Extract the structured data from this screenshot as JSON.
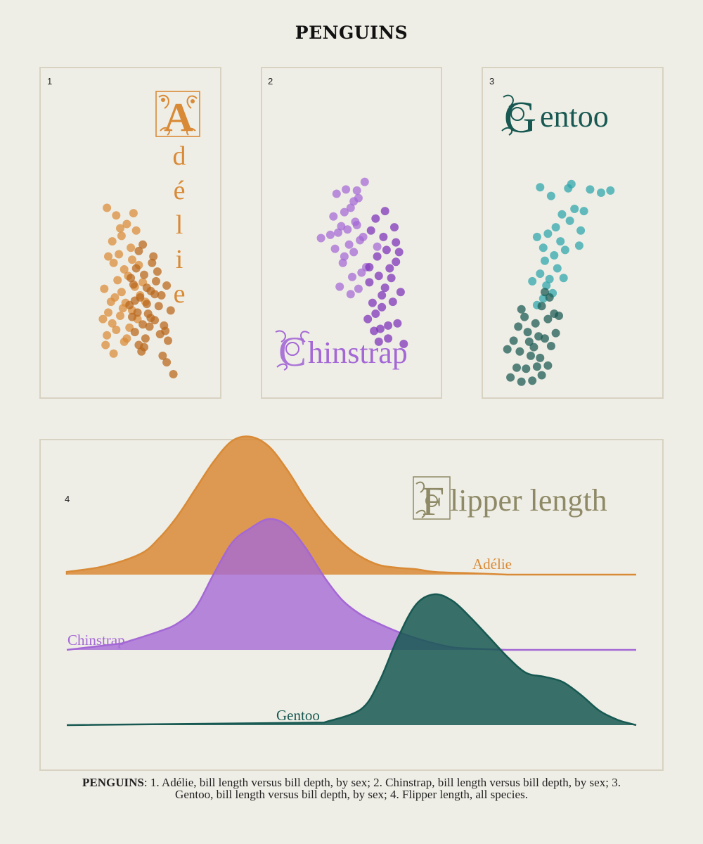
{
  "title": "PENGUINS",
  "panels": [
    {
      "num": "1",
      "label": "Adélie"
    },
    {
      "num": "2",
      "label": "Chinstrap"
    },
    {
      "num": "3",
      "label": "Gentoo"
    },
    {
      "num": "4",
      "label": "Flipper length"
    }
  ],
  "caption": {
    "bold": "PENGUINS",
    "text": ": 1. Adélie, bill length versus bill depth, by sex; 2. Chinstrap, bill length versus bill depth, by sex; 3. Gentoo, bill length versus bill depth, by sex; 4. Flipper length, all species."
  },
  "colors": {
    "adelie_female": "#d98a36",
    "adelie_male": "#b8661a",
    "chinstrap_female": "#a468d6",
    "chinstrap_male": "#7c30b8",
    "gentoo_female": "#2aa5ab",
    "gentoo_male": "#175952",
    "flipper_label": "#8e8a67",
    "panel_border": "#d8d2c2",
    "background": "#efeee6"
  },
  "chart_data": [
    {
      "type": "scatter",
      "title": "Adélie",
      "xlim": [
        13,
        22
      ],
      "ylim": [
        32,
        60
      ],
      "series": [
        {
          "color_key": "adelie_female",
          "points": [
            [
              16.5,
              37.1
            ],
            [
              17.2,
              37.6
            ],
            [
              16.9,
              38.2
            ],
            [
              17.8,
              36.5
            ],
            [
              18.2,
              37.8
            ],
            [
              17.5,
              38.9
            ],
            [
              16.6,
              39.2
            ],
            [
              17.9,
              40.1
            ],
            [
              18.4,
              39.4
            ],
            [
              17.1,
              40.6
            ],
            [
              17.6,
              41.1
            ],
            [
              18.8,
              38.6
            ],
            [
              16.4,
              36.2
            ],
            [
              18.6,
              41.6
            ],
            [
              17.3,
              42.2
            ],
            [
              17.7,
              39.6
            ],
            [
              16.8,
              40.2
            ],
            [
              18.1,
              42.6
            ],
            [
              17.0,
              43.8
            ],
            [
              17.4,
              44.6
            ],
            [
              18.3,
              45.2
            ],
            [
              16.9,
              45.8
            ],
            [
              17.6,
              46.3
            ],
            [
              18.7,
              46.8
            ],
            [
              18.0,
              47.4
            ],
            [
              17.2,
              48.2
            ],
            [
              16.5,
              48.9
            ],
            [
              18.4,
              44.1
            ],
            [
              17.8,
              43.2
            ],
            [
              19.0,
              40.8
            ],
            [
              17.0,
              35.4
            ],
            [
              16.3,
              41.4
            ],
            [
              18.9,
              43.6
            ],
            [
              19.2,
              42.0
            ],
            [
              17.5,
              47.0
            ],
            [
              18.5,
              48.4
            ],
            [
              16.6,
              44.4
            ],
            [
              19.4,
              40.2
            ],
            [
              16.2,
              38.6
            ],
            [
              18.0,
              36.8
            ]
          ]
        },
        {
          "color_key": "adelie_male",
          "points": [
            [
              18.9,
              36.2
            ],
            [
              19.4,
              36.8
            ],
            [
              18.6,
              37.4
            ],
            [
              19.7,
              37.9
            ],
            [
              20.1,
              38.5
            ],
            [
              18.8,
              39.2
            ],
            [
              19.5,
              40.0
            ],
            [
              20.4,
              39.8
            ],
            [
              19.0,
              40.6
            ],
            [
              19.8,
              41.2
            ],
            [
              18.5,
              41.8
            ],
            [
              20.2,
              42.1
            ],
            [
              19.3,
              42.7
            ],
            [
              18.7,
              43.3
            ],
            [
              19.9,
              43.8
            ],
            [
              20.6,
              40.8
            ],
            [
              21.1,
              36.6
            ],
            [
              20.8,
              38.0
            ],
            [
              19.2,
              38.1
            ],
            [
              18.4,
              38.8
            ],
            [
              19.6,
              39.1
            ],
            [
              20.0,
              44.4
            ],
            [
              18.9,
              44.9
            ],
            [
              21.3,
              39.4
            ],
            [
              19.1,
              35.6
            ],
            [
              20.7,
              35.2
            ],
            [
              21.0,
              34.6
            ],
            [
              21.5,
              33.5
            ],
            [
              20.5,
              37.2
            ],
            [
              19.5,
              41.5
            ],
            [
              18.3,
              42.4
            ],
            [
              20.3,
              43.0
            ],
            [
              19.2,
              45.5
            ],
            [
              21.0,
              41.7
            ],
            [
              18.6,
              40.3
            ],
            [
              19.8,
              38.7
            ],
            [
              20.9,
              37.5
            ],
            [
              19.3,
              36.0
            ],
            [
              18.2,
              39.9
            ],
            [
              20.1,
              40.9
            ]
          ]
        }
      ]
    },
    {
      "type": "scatter",
      "title": "Chinstrap",
      "xlim": [
        13,
        22
      ],
      "ylim": [
        32,
        60
      ],
      "series": [
        {
          "color_key": "chinstrap_female",
          "points": [
            [
              17.0,
              48.5
            ],
            [
              17.4,
              48.9
            ],
            [
              17.7,
              47.6
            ],
            [
              16.8,
              47.2
            ],
            [
              17.9,
              49.8
            ],
            [
              16.6,
              46.6
            ],
            [
              18.2,
              46.2
            ],
            [
              17.3,
              45.5
            ],
            [
              16.4,
              45.1
            ],
            [
              17.6,
              44.8
            ],
            [
              18.0,
              45.9
            ],
            [
              17.2,
              46.9
            ],
            [
              17.8,
              47.3
            ],
            [
              16.9,
              43.8
            ],
            [
              17.5,
              42.5
            ],
            [
              18.1,
              42.9
            ],
            [
              16.7,
              41.6
            ],
            [
              17.9,
              41.4
            ],
            [
              17.4,
              40.9
            ],
            [
              18.4,
              43.4
            ],
            [
              16.5,
              50.2
            ],
            [
              17.1,
              50.6
            ],
            [
              18.3,
              51.3
            ],
            [
              19.1,
              45.3
            ],
            [
              15.5,
              46.1
            ],
            [
              16.1,
              46.4
            ],
            [
              17.6,
              49.5
            ],
            [
              16.3,
              48.1
            ],
            [
              17.0,
              44.4
            ],
            [
              17.8,
              50.5
            ]
          ]
        },
        {
          "color_key": "chinstrap_male",
          "points": [
            [
              18.5,
              38.6
            ],
            [
              19.0,
              39.1
            ],
            [
              18.8,
              40.1
            ],
            [
              19.4,
              40.8
            ],
            [
              19.6,
              41.5
            ],
            [
              18.6,
              42.0
            ],
            [
              19.2,
              42.6
            ],
            [
              19.9,
              43.3
            ],
            [
              20.3,
              43.9
            ],
            [
              19.1,
              44.4
            ],
            [
              19.7,
              45.0
            ],
            [
              20.5,
              44.8
            ],
            [
              18.9,
              37.5
            ],
            [
              19.8,
              38.0
            ],
            [
              20.4,
              38.2
            ],
            [
              19.3,
              37.7
            ],
            [
              20.1,
              40.2
            ],
            [
              19.5,
              46.2
            ],
            [
              18.7,
              46.8
            ],
            [
              20.2,
              47.1
            ],
            [
              19.0,
              47.9
            ],
            [
              20.0,
              42.4
            ],
            [
              19.4,
              39.7
            ],
            [
              18.6,
              43.4
            ],
            [
              20.6,
              41.1
            ],
            [
              19.8,
              36.8
            ],
            [
              19.2,
              36.5
            ],
            [
              20.8,
              36.3
            ],
            [
              19.6,
              48.6
            ],
            [
              20.3,
              45.7
            ]
          ]
        }
      ]
    },
    {
      "type": "scatter",
      "title": "Gentoo",
      "xlim": [
        13,
        22
      ],
      "ylim": [
        32,
        60
      ],
      "series": [
        {
          "color_key": "gentoo_female",
          "points": [
            [
              15.2,
              39.9
            ],
            [
              15.6,
              40.5
            ],
            [
              15.8,
              41.7
            ],
            [
              16.0,
              42.3
            ],
            [
              16.2,
              41.0
            ],
            [
              15.4,
              42.8
            ],
            [
              16.5,
              43.3
            ],
            [
              15.7,
              44.0
            ],
            [
              16.3,
              44.5
            ],
            [
              17.0,
              45.0
            ],
            [
              16.7,
              45.8
            ],
            [
              15.9,
              46.5
            ],
            [
              16.4,
              47.1
            ],
            [
              17.3,
              47.7
            ],
            [
              16.8,
              48.3
            ],
            [
              17.6,
              48.8
            ],
            [
              18.2,
              48.6
            ],
            [
              19.3,
              50.3
            ],
            [
              17.4,
              51.1
            ],
            [
              18.6,
              50.6
            ],
            [
              19.9,
              50.5
            ],
            [
              15.4,
              50.8
            ],
            [
              16.1,
              50.0
            ],
            [
              17.2,
              50.7
            ],
            [
              18.0,
              46.8
            ],
            [
              15.6,
              45.2
            ],
            [
              16.9,
              42.4
            ],
            [
              17.9,
              45.4
            ],
            [
              14.9,
              42.1
            ],
            [
              15.2,
              46.2
            ]
          ]
        },
        {
          "color_key": "gentoo_male",
          "points": [
            [
              13.5,
              33.2
            ],
            [
              13.9,
              34.1
            ],
            [
              14.2,
              32.8
            ],
            [
              14.5,
              34.0
            ],
            [
              14.8,
              35.2
            ],
            [
              14.1,
              35.6
            ],
            [
              15.0,
              36.0
            ],
            [
              15.4,
              35.0
            ],
            [
              15.7,
              36.8
            ],
            [
              14.6,
              37.4
            ],
            [
              15.1,
              38.2
            ],
            [
              15.9,
              38.6
            ],
            [
              16.3,
              39.1
            ],
            [
              14.4,
              38.8
            ],
            [
              15.5,
              39.8
            ],
            [
              15.7,
              41.1
            ],
            [
              16.0,
              40.6
            ],
            [
              14.7,
              36.5
            ],
            [
              13.3,
              35.8
            ],
            [
              14.0,
              37.9
            ],
            [
              16.4,
              37.3
            ],
            [
              15.2,
              34.2
            ],
            [
              14.9,
              32.9
            ],
            [
              16.6,
              38.9
            ],
            [
              13.7,
              36.6
            ],
            [
              15.3,
              37.0
            ],
            [
              15.9,
              34.3
            ],
            [
              14.2,
              39.5
            ],
            [
              16.1,
              36.1
            ],
            [
              15.5,
              33.4
            ]
          ]
        }
      ]
    },
    {
      "type": "area",
      "title": "Flipper length",
      "series": [
        {
          "name": "Adélie",
          "color_key": "adelie_female",
          "x": [
            172,
            176,
            180,
            182,
            184,
            186,
            188,
            190,
            192,
            194,
            196,
            198,
            200,
            202,
            204,
            206,
            208,
            210,
            212,
            216,
            220
          ],
          "values": [
            0.02,
            0.06,
            0.15,
            0.26,
            0.42,
            0.62,
            0.82,
            0.97,
            1.0,
            0.93,
            0.76,
            0.55,
            0.37,
            0.23,
            0.13,
            0.07,
            0.05,
            0.04,
            0.02,
            0.01,
            0.0
          ]
        },
        {
          "name": "Chinstrap",
          "color_key": "chinstrap_female",
          "x": [
            178,
            182,
            184,
            186,
            188,
            190,
            192,
            194,
            196,
            198,
            200,
            202,
            204,
            206,
            208,
            210,
            212,
            214,
            216,
            220
          ],
          "values": [
            0.05,
            0.14,
            0.2,
            0.32,
            0.58,
            0.82,
            0.93,
            1.0,
            0.95,
            0.78,
            0.56,
            0.38,
            0.27,
            0.2,
            0.14,
            0.09,
            0.05,
            0.02,
            0.01,
            0.0
          ]
        },
        {
          "name": "Gentoo",
          "color_key": "gentoo_male",
          "x": [
            200,
            204,
            206,
            208,
            210,
            212,
            214,
            216,
            218,
            220,
            222,
            224,
            226,
            228,
            230,
            232,
            234
          ],
          "values": [
            0.02,
            0.12,
            0.33,
            0.66,
            0.92,
            1.0,
            0.95,
            0.82,
            0.67,
            0.52,
            0.4,
            0.37,
            0.33,
            0.23,
            0.11,
            0.04,
            0.0
          ]
        }
      ],
      "xlim": [
        172,
        234
      ]
    }
  ]
}
